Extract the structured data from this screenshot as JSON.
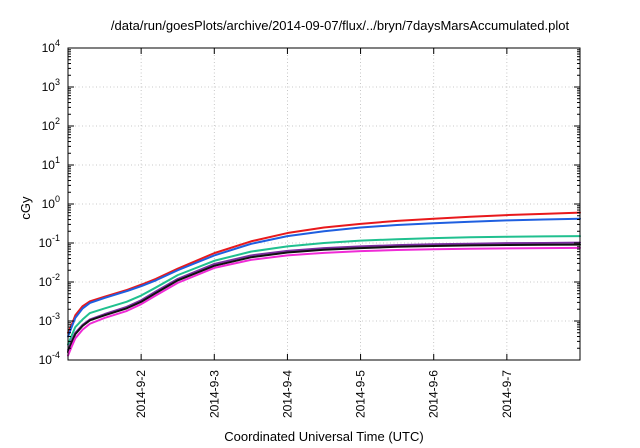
{
  "chart_data": {
    "type": "line",
    "title": "/data/run/goesPlots/archive/2014-09-07/flux/../bryn/7daysMarsAccumulated.plot",
    "xlabel": "Coordinated Universal Time (UTC)",
    "ylabel": "cGy",
    "yscale": "log",
    "xlim": [
      1,
      8
    ],
    "ylim": [
      0.0001,
      10000
    ],
    "grid": true,
    "x_ticks": [
      {
        "value": 2,
        "label": "2014-9-2"
      },
      {
        "value": 3,
        "label": "2014-9-3"
      },
      {
        "value": 4,
        "label": "2014-9-4"
      },
      {
        "value": 5,
        "label": "2014-9-5"
      },
      {
        "value": 6,
        "label": "2014-9-6"
      },
      {
        "value": 7,
        "label": "2014-9-7"
      }
    ],
    "y_ticks": [
      {
        "value": 0.0001,
        "base": "10",
        "exp": "-4"
      },
      {
        "value": 0.001,
        "base": "10",
        "exp": "-3"
      },
      {
        "value": 0.01,
        "base": "10",
        "exp": "-2"
      },
      {
        "value": 0.1,
        "base": "10",
        "exp": "-1"
      },
      {
        "value": 1,
        "base": "10",
        "exp": "0"
      },
      {
        "value": 10,
        "base": "10",
        "exp": "1"
      },
      {
        "value": 100,
        "base": "10",
        "exp": "2"
      },
      {
        "value": 1000,
        "base": "10",
        "exp": "3"
      },
      {
        "value": 10000,
        "base": "10",
        "exp": "4"
      }
    ],
    "x": [
      1.0,
      1.05,
      1.1,
      1.2,
      1.3,
      1.5,
      1.8,
      2.0,
      2.2,
      2.5,
      3.0,
      3.5,
      4.0,
      4.5,
      5.0,
      5.5,
      6.0,
      6.5,
      7.0,
      7.5,
      8.0
    ],
    "series": [
      {
        "name": "red",
        "color": "#e8191c",
        "values": [
          0.0005,
          0.0008,
          0.0014,
          0.0024,
          0.0032,
          0.0042,
          0.0062,
          0.0085,
          0.012,
          0.022,
          0.055,
          0.11,
          0.18,
          0.25,
          0.31,
          0.37,
          0.42,
          0.47,
          0.52,
          0.56,
          0.6
        ]
      },
      {
        "name": "blue",
        "color": "#1f5fe0",
        "values": [
          0.0004,
          0.0007,
          0.0012,
          0.0021,
          0.0029,
          0.0039,
          0.0058,
          0.0078,
          0.011,
          0.02,
          0.048,
          0.095,
          0.15,
          0.2,
          0.25,
          0.29,
          0.32,
          0.35,
          0.38,
          0.4,
          0.42
        ]
      },
      {
        "name": "green",
        "color": "#20c08f",
        "values": [
          0.00025,
          0.00042,
          0.0007,
          0.0011,
          0.0016,
          0.0021,
          0.0031,
          0.0045,
          0.0072,
          0.015,
          0.035,
          0.06,
          0.082,
          0.1,
          0.115,
          0.125,
          0.133,
          0.14,
          0.145,
          0.148,
          0.15
        ]
      },
      {
        "name": "purple",
        "color": "#7a2ea0",
        "values": [
          0.00018,
          0.00031,
          0.0005,
          0.0008,
          0.0011,
          0.0015,
          0.0023,
          0.0034,
          0.0057,
          0.012,
          0.029,
          0.048,
          0.063,
          0.074,
          0.082,
          0.088,
          0.093,
          0.096,
          0.099,
          0.1,
          0.102
        ]
      },
      {
        "name": "black",
        "color": "#111111",
        "values": [
          0.00016,
          0.00028,
          0.00046,
          0.00075,
          0.00104,
          0.0014,
          0.0021,
          0.0031,
          0.0052,
          0.011,
          0.026,
          0.043,
          0.057,
          0.067,
          0.074,
          0.08,
          0.084,
          0.087,
          0.089,
          0.09,
          0.091
        ]
      },
      {
        "name": "magenta",
        "color": "#ef2bd6",
        "values": [
          0.00013,
          0.00022,
          0.00036,
          0.0006,
          0.00085,
          0.0012,
          0.0018,
          0.0027,
          0.0045,
          0.0095,
          0.023,
          0.037,
          0.048,
          0.056,
          0.062,
          0.066,
          0.069,
          0.071,
          0.073,
          0.074,
          0.075
        ]
      }
    ]
  }
}
